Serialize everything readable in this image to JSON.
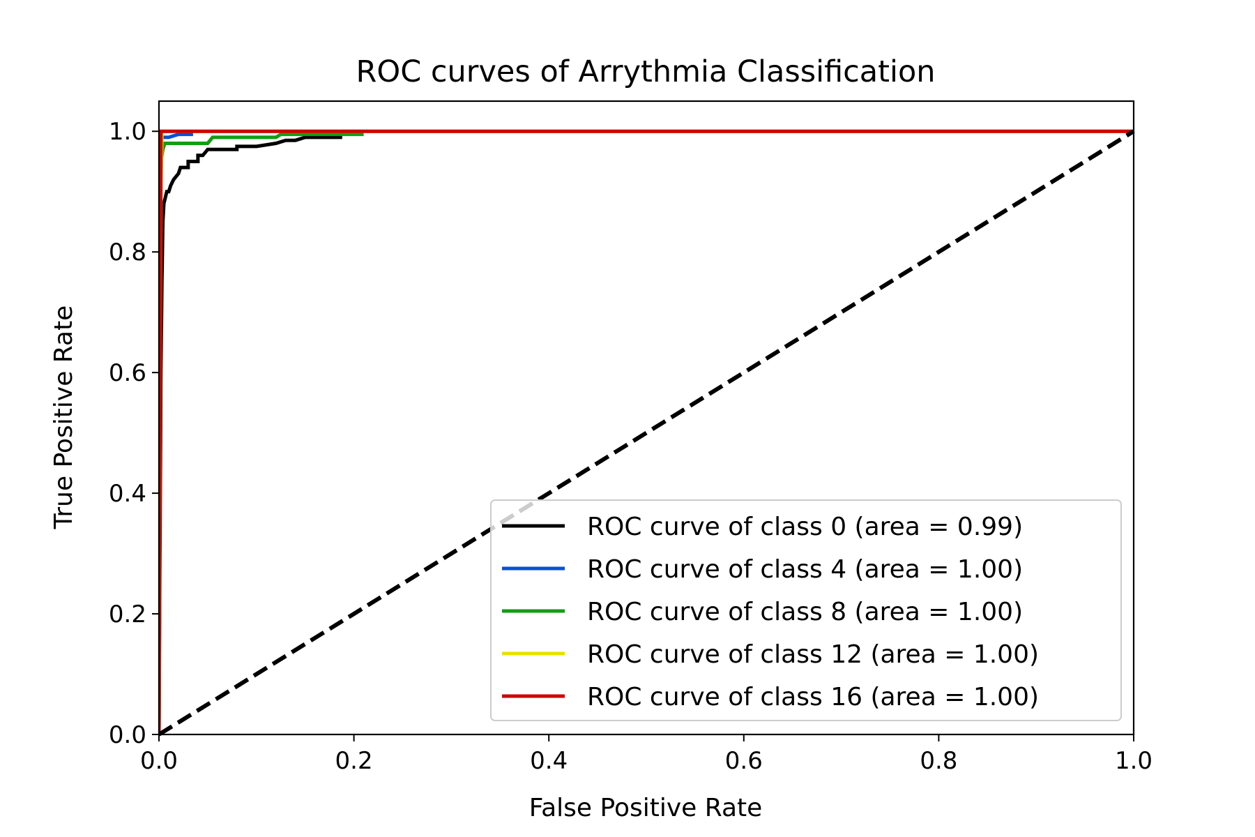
{
  "chart_data": {
    "type": "line",
    "title": "ROC curves of Arrythmia Classification",
    "xlabel": "False Positive Rate",
    "ylabel": "True Positive Rate",
    "xlim": [
      0.0,
      1.0
    ],
    "ylim": [
      0.0,
      1.05
    ],
    "xticks": [
      "0.0",
      "0.2",
      "0.4",
      "0.6",
      "0.8",
      "1.0"
    ],
    "yticks": [
      "0.0",
      "0.2",
      "0.4",
      "0.6",
      "0.8",
      "1.0"
    ],
    "grid": false,
    "legend_position": "lower-right",
    "series": [
      {
        "name": "ROC curve of class 0 (area = 0.99)",
        "color": "#000000",
        "x": [
          0.0,
          0.002,
          0.003,
          0.004,
          0.005,
          0.008,
          0.01,
          0.012,
          0.015,
          0.02,
          0.022,
          0.025,
          0.03,
          0.03,
          0.035,
          0.035,
          0.04,
          0.04,
          0.045,
          0.05,
          0.055,
          0.06,
          0.07,
          0.08,
          0.08,
          0.1,
          0.12,
          0.13,
          0.14,
          0.15,
          0.188
        ],
        "y": [
          0.0,
          0.6,
          0.75,
          0.85,
          0.88,
          0.9,
          0.9,
          0.91,
          0.92,
          0.93,
          0.94,
          0.94,
          0.94,
          0.95,
          0.95,
          0.95,
          0.95,
          0.96,
          0.96,
          0.97,
          0.97,
          0.97,
          0.97,
          0.97,
          0.975,
          0.975,
          0.98,
          0.985,
          0.985,
          0.99,
          0.99
        ]
      },
      {
        "name": "ROC curve of class 4 (area = 1.00)",
        "color": "#0a4fd6",
        "x": [
          0.0,
          0.001,
          0.002,
          0.004,
          0.01,
          0.02,
          0.035
        ],
        "y": [
          0.0,
          0.97,
          0.99,
          0.99,
          0.99,
          0.995,
          0.995
        ]
      },
      {
        "name": "ROC curve of class 8 (area = 1.00)",
        "color": "#119e11",
        "x": [
          0.0,
          0.002,
          0.004,
          0.006,
          0.01,
          0.05,
          0.055,
          0.12,
          0.125,
          0.21
        ],
        "y": [
          0.0,
          0.95,
          0.97,
          0.98,
          0.98,
          0.98,
          0.99,
          0.99,
          0.995,
          0.995
        ]
      },
      {
        "name": "ROC curve of class 12 (area = 1.00)",
        "color": "#e8e000",
        "x": [
          0.0,
          0.002,
          0.003,
          1.0
        ],
        "y": [
          0.0,
          0.9,
          1.0,
          1.0
        ]
      },
      {
        "name": "ROC curve of class 16 (area = 1.00)",
        "color": "#cc0000",
        "x": [
          0.0,
          0.002,
          1.0
        ],
        "y": [
          0.0,
          1.0,
          1.0
        ]
      }
    ],
    "reference_line": {
      "x": [
        0.0,
        1.0
      ],
      "y": [
        0.0,
        1.0
      ],
      "color": "#000000",
      "style": "dashed"
    }
  }
}
